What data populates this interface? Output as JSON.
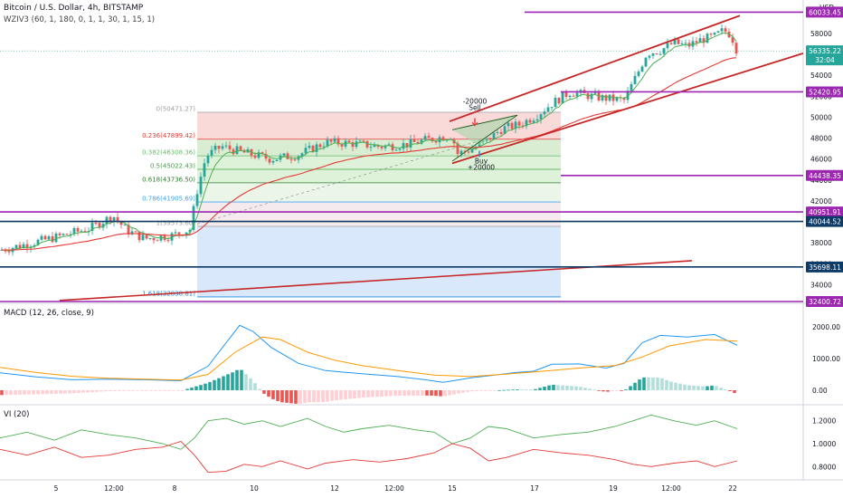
{
  "header": {
    "title": "Bitcoin / U.S. Dollar, 4h, BITSTAMP",
    "indicator": "WZIV3 (60, 1, 180, 0, 1, 1, 30, 1, 15, 1)",
    "currency": "USD"
  },
  "current_price": "56335.22",
  "countdown": "32:04",
  "chart_data": [
    {
      "type": "candlestick",
      "x_ticks": [
        "5",
        "12:00",
        "8",
        "10",
        "12",
        "12:00",
        "15",
        "17",
        "19",
        "12:00",
        "22"
      ],
      "y_ticks": [
        34000,
        36000,
        38000,
        40000,
        42000,
        44000,
        46000,
        48000,
        50000,
        52000,
        54000,
        56000,
        58000
      ],
      "ylim": [
        32400,
        60500
      ],
      "fib_levels": [
        {
          "label": "0(50471.27)",
          "value": 50471.27
        },
        {
          "label": "0.236(47899.42)",
          "value": 47899.42
        },
        {
          "label": "0.382(46308.36)",
          "value": 46308.36
        },
        {
          "label": "0.5(45022.43)",
          "value": 45022.43
        },
        {
          "label": "0.618(43736.50)",
          "value": 43736.5
        },
        {
          "label": "0.786(41905.69)",
          "value": 41905.69
        },
        {
          "label": "1(39573.60)",
          "value": 39573.6
        },
        {
          "label": "1.618(32838.81)",
          "value": 32838.81
        }
      ],
      "horizontal_levels": [
        {
          "label": "60033.45",
          "value": 60033.45,
          "color": "#9c27b0"
        },
        {
          "label": "52420.95",
          "value": 52420.95,
          "color": "#9c27b0"
        },
        {
          "label": "44438.35",
          "value": 44438.35,
          "color": "#9c27b0"
        },
        {
          "label": "40951.91",
          "value": 40951.91,
          "color": "#9c27b0"
        },
        {
          "label": "40044.52",
          "value": 40044.52,
          "color": "#0d3b66"
        },
        {
          "label": "35698.11",
          "value": 35698.11,
          "color": "#0d3b66"
        },
        {
          "label": "32400.72",
          "value": 32400.72,
          "color": "#9c27b0"
        }
      ],
      "annotations": {
        "sell_amount": "-20000",
        "sell_label": "Sell",
        "buy_label": "Buy",
        "buy_amount": "+20000"
      },
      "colors": {
        "up": "#26a69a",
        "down": "#ef5350",
        "ema_fast": "#4caf50",
        "ema_slow": "#e53935",
        "channel": "#c62828",
        "fib_upper": "#f8c9c9",
        "fib_lower": "#bbdefb"
      }
    },
    {
      "type": "line",
      "title": "MACD (12, 26, close, 9)",
      "y_ticks": [
        "2000.00",
        "1000.00",
        "0.00"
      ],
      "ylim": [
        -400,
        2600
      ]
    },
    {
      "type": "line",
      "title": "VI (20)",
      "y_ticks": [
        "1.2000",
        "1.0000",
        "0.8000"
      ],
      "ylim": [
        0.7,
        1.3
      ]
    }
  ]
}
